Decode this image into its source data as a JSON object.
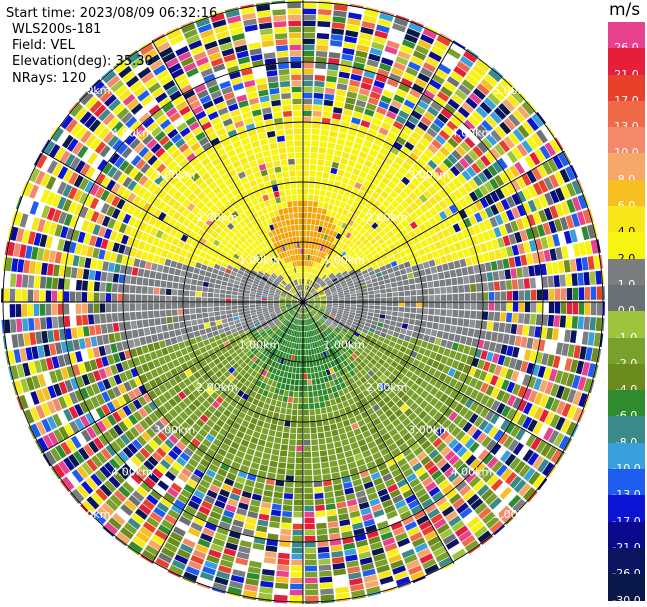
{
  "info": {
    "start_time": "Start time: 2023/08/09 06:32:16",
    "instrument": "WLS200s-181",
    "field": "Field: VEL",
    "elevation": "Elevation(deg): 35.30",
    "nrays": "NRays: 120"
  },
  "colorbar": {
    "unit": "m/s",
    "levels": [
      {
        "label": "26.0",
        "color": "#e8418f"
      },
      {
        "label": "21.0",
        "color": "#e61e3c"
      },
      {
        "label": "17.0",
        "color": "#e8402a"
      },
      {
        "label": "13.0",
        "color": "#f06a4a"
      },
      {
        "label": "10.0",
        "color": "#f3896a"
      },
      {
        "label": "8.0",
        "color": "#f5a868"
      },
      {
        "label": "6.0",
        "color": "#f5c020"
      },
      {
        "label": "4.0",
        "color": "#f8e81a"
      },
      {
        "label": "2.0",
        "color": "#f7f50f"
      },
      {
        "label": "1.0",
        "color": "#7a7e80"
      },
      {
        "label": "0.0",
        "color": "#6b7074"
      },
      {
        "label": "-1.0",
        "color": "#9dc43a"
      },
      {
        "label": "-2.0",
        "color": "#7aa02c"
      },
      {
        "label": "-4.0",
        "color": "#6b8b1c"
      },
      {
        "label": "-6.0",
        "color": "#2e8b2e"
      },
      {
        "label": "-8.0",
        "color": "#3a8a8a"
      },
      {
        "label": "-10.0",
        "color": "#3aa0dc"
      },
      {
        "label": "-13.0",
        "color": "#1f5cf0"
      },
      {
        "label": "-17.0",
        "color": "#0a14d2"
      },
      {
        "label": "-21.0",
        "color": "#0a0a8c"
      },
      {
        "label": "-26.0",
        "color": "#0a1460"
      },
      {
        "label": "-30.0",
        "color": "#081848"
      }
    ]
  },
  "chart_data": {
    "type": "heatmap",
    "projection": "polar-ppi",
    "field": "VEL",
    "units": "m/s",
    "rays": 120,
    "range_rings_km": [
      1,
      2,
      3,
      4,
      5
    ],
    "ring_labels": [
      "1.00km",
      "2.00km",
      "3.00km",
      "4.00km",
      "5.00km"
    ],
    "spokes": 12,
    "pattern": {
      "near_north": "orange 4-6 m/s centered ~1.2 km north",
      "north_band": "yellow 1-4 m/s",
      "south_band": "olive/green -1 to -6 m/s, dark green ~1 km south",
      "east_west": "gray ~0 m/s band",
      "outer": "noisy all-color beyond ~3.5 km"
    }
  }
}
